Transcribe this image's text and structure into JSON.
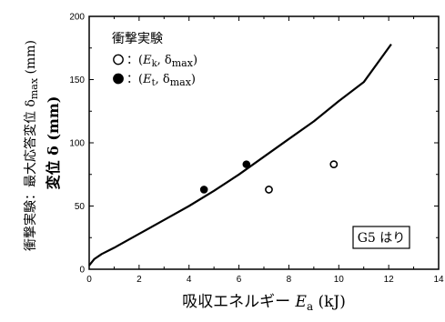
{
  "chart_data": {
    "type": "scatter",
    "title": "",
    "xlabel": {
      "prefix": "吸収エネルギー ",
      "symbol": "E",
      "subscript": "a",
      "unit": " (kJ)"
    },
    "ylabel": {
      "primary": "変位 δ (mm)",
      "secondary_prefix": "衝撃実験：最大応答変位 δ",
      "secondary_subscript": "max",
      "secondary_unit": " (mm)"
    },
    "xlim": [
      0,
      14
    ],
    "ylim": [
      0,
      200
    ],
    "x_ticks": [
      0,
      2,
      4,
      6,
      8,
      10,
      12,
      14
    ],
    "y_ticks": [
      0,
      50,
      100,
      150,
      200
    ],
    "x_tick_labels": [
      "0",
      "2",
      "4",
      "6",
      "8",
      "10",
      "12",
      "14"
    ],
    "y_tick_labels": [
      "0",
      "50",
      "100",
      "150",
      "200"
    ],
    "grid": false,
    "series": [
      {
        "name": "",
        "kind": "line",
        "color": "#000000",
        "x": [
          0,
          0.2,
          0.5,
          1,
          2,
          3,
          4,
          5,
          6,
          7,
          8,
          9,
          10,
          11,
          12.1
        ],
        "y": [
          3,
          8,
          12,
          17,
          28,
          39,
          50,
          62,
          75,
          89,
          103,
          117,
          133,
          148,
          178
        ]
      },
      {
        "name": "",
        "kind": "scatter",
        "marker": "open-circle",
        "color": "#000000",
        "x": [
          7.2,
          9.8
        ],
        "y": [
          63,
          83
        ]
      },
      {
        "name": "",
        "kind": "scatter",
        "marker": "filled-circle",
        "color": "#000000",
        "x": [
          4.6,
          6.3
        ],
        "y": [
          63,
          83
        ]
      }
    ],
    "legend": {
      "placement": "top-left",
      "title": "衝撃実験",
      "entries": [
        {
          "marker": "open-circle",
          "prefix": "：(",
          "symbol": "E",
          "subscript": "k",
          "sep": ",  δ",
          "sub2": "max",
          "suffix": ")"
        },
        {
          "marker": "filled-circle",
          "prefix": "：(",
          "symbol": "E",
          "subscript": "t",
          "sep": ",  δ",
          "sub2": "max",
          "suffix": ")"
        }
      ]
    },
    "annotations": [
      {
        "text": "G5 はり",
        "placement": "bottom-right",
        "boxed": true
      }
    ]
  }
}
